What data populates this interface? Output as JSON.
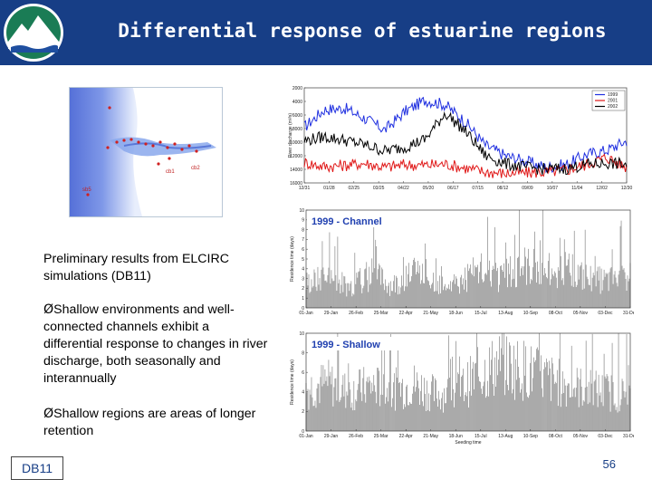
{
  "slide": {
    "title": "Differential response of estuarine regions",
    "page_number": "56",
    "reference": "DB11"
  },
  "body": {
    "intro": "Preliminary results from ELCIRC simulations (DB11)",
    "bullet_1_marker": "Ø",
    "bullet_1": "Shallow environments and well-connected channels exhibit a differential response to changes in river discharge, both seasonally and interannually",
    "bullet_2_marker": "Ø",
    "bullet_2": "Shallow regions are areas of longer retention"
  },
  "map": {
    "station_labels": [
      "cb1",
      "cb2",
      "sb5"
    ]
  },
  "chart_data": [
    {
      "type": "line",
      "ylabel": "River discharge (m³/s)",
      "ylim": [
        2000,
        16000
      ],
      "y_ticks": [
        "16000",
        "14000",
        "12000",
        "10000",
        "8000",
        "6000",
        "4000",
        "2000"
      ],
      "x_ticks": [
        "12/31",
        "01/28",
        "02/25",
        "03/25",
        "04/22",
        "05/20",
        "06/17",
        "07/15",
        "08/12",
        "09/09",
        "10/07",
        "11/04",
        "12/02",
        "12/30"
      ],
      "series": [
        {
          "name": "1999",
          "color": "#2030e0",
          "values": [
            10200,
            12800,
            13000,
            11500,
            9800,
            12500,
            14200,
            13500,
            11000,
            7500,
            6000,
            5200,
            4300,
            4700,
            6200,
            6800,
            8200
          ]
        },
        {
          "name": "2001",
          "color": "#e01818",
          "values": [
            5000,
            4400,
            4600,
            4900,
            4300,
            4700,
            4600,
            4800,
            4200,
            3600,
            3400,
            3500,
            3600,
            3900,
            4700,
            5800,
            4300
          ]
        },
        {
          "name": "2002",
          "color": "#000000",
          "values": [
            8200,
            8800,
            8300,
            7600,
            6700,
            7300,
            8400,
            12300,
            9600,
            6000,
            4800,
            4300,
            4000,
            4100,
            4700,
            4900,
            4700
          ]
        }
      ]
    },
    {
      "type": "bar",
      "title": "1999 - Channel",
      "ylabel": "Residence time (days)",
      "ylim": [
        0,
        10
      ],
      "y_ticks": [
        "0",
        "1",
        "2",
        "3",
        "4",
        "5",
        "6",
        "7",
        "8",
        "9",
        "10"
      ],
      "x_ticks": [
        "01-Jan",
        "29-Jan",
        "26-Feb",
        "25-Mar",
        "22-Apr",
        "21-May",
        "18-Jun",
        "15-Jul",
        "13-Aug",
        "10-Sep",
        "08-Oct",
        "05-Nov",
        "03-Dec",
        "31-Dec"
      ],
      "values": [
        3.5,
        4.2,
        3.0,
        4.8,
        3.2,
        5.2,
        4.0,
        3.6,
        5.5,
        4.1,
        6.0,
        5.2,
        5.8,
        4.0,
        3.8,
        5.0
      ]
    },
    {
      "type": "bar",
      "title": "1999 - Shallow",
      "ylabel": "Residence time (days)",
      "ylim": [
        0,
        10
      ],
      "y_ticks": [
        "0",
        "2",
        "4",
        "6",
        "8",
        "10"
      ],
      "x_ticks": [
        "01-Jan",
        "29-Jan",
        "26-Feb",
        "25-Mar",
        "22-Apr",
        "21-May",
        "18-Jun",
        "15-Jul",
        "13-Aug",
        "10-Sep",
        "08-Oct",
        "05-Nov",
        "03-Dec",
        "31-Dec"
      ],
      "xlabel": "Seeding time",
      "values": [
        6.0,
        6.8,
        5.5,
        6.4,
        5.8,
        6.6,
        5.2,
        5.6,
        8.0,
        9.5,
        8.8,
        7.6,
        6.5,
        6.0,
        5.5,
        5.0
      ]
    }
  ]
}
